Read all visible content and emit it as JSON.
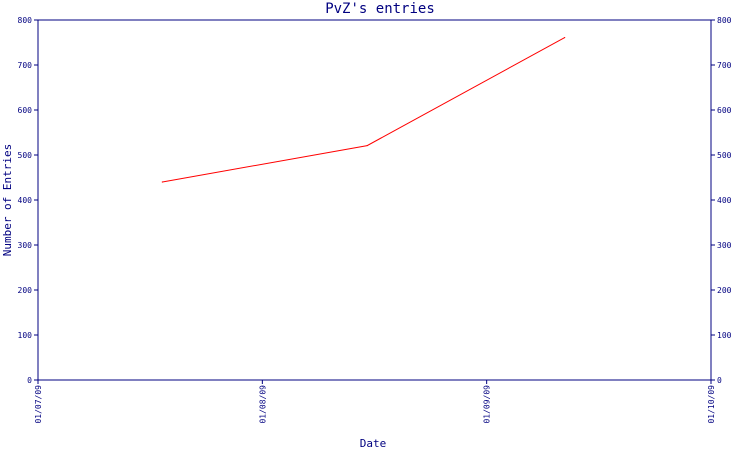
{
  "chart_data": {
    "type": "line",
    "title": "PvZ's entries",
    "xlabel": "Date",
    "ylabel": "Number of Entries",
    "x_ticks": [
      "01/07/09",
      "01/08/09",
      "01/09/09",
      "01/10/09"
    ],
    "y_ticks": [
      "0",
      "100",
      "200",
      "300",
      "400",
      "500",
      "600",
      "700",
      "800"
    ],
    "ylim": [
      0,
      800
    ],
    "xlim": [
      "2009-07-01",
      "2009-10-01"
    ],
    "y_axis_right": true,
    "grid": false,
    "series": [
      {
        "color": "#ff0000",
        "x": [
          "2009-07-18",
          "2009-08-15",
          "2009-09-11"
        ],
        "y": [
          440,
          521,
          761
        ]
      }
    ]
  },
  "colors": {
    "axis": "#000080",
    "line": "#ff0000",
    "background": "#ffffff"
  }
}
